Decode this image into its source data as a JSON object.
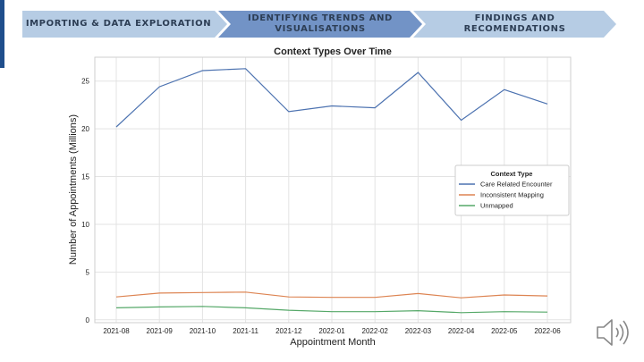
{
  "steps": [
    {
      "label": "IMPORTING & DATA EXPLORATION",
      "state": "inactive"
    },
    {
      "label": "IDENTIFYING TRENDS AND VISUALISATIONS",
      "state": "active"
    },
    {
      "label": "FINDINGS AND RECOMENDATIONS",
      "state": "inactive"
    }
  ],
  "colors": {
    "step_inactive": "#b6cce4",
    "step_active": "#7293c6",
    "accent": "#1f4e8c",
    "care": "#4c72b0",
    "inconsistent": "#dd8452",
    "unmapped": "#55a868"
  },
  "icons": {
    "audio": "speaker-icon"
  },
  "chart_data": {
    "type": "line",
    "title": "Context Types Over Time",
    "xlabel": "Appointment Month",
    "ylabel": "Number of Appointments (Millions)",
    "categories": [
      "2021-08",
      "2021-09",
      "2021-10",
      "2021-11",
      "2021-12",
      "2022-01",
      "2022-02",
      "2022-03",
      "2022-04",
      "2022-05",
      "2022-06"
    ],
    "ylim": [
      -0.3,
      27.5
    ],
    "yticks": [
      0,
      5,
      10,
      15,
      20,
      25
    ],
    "grid": true,
    "legend": {
      "title": "Context Type",
      "placement": "center-right"
    },
    "series": [
      {
        "name": "Care Related Encounter",
        "color": "#4c72b0",
        "values": [
          20.2,
          24.4,
          26.1,
          26.3,
          21.8,
          22.4,
          22.2,
          25.9,
          20.9,
          24.1,
          22.6
        ]
      },
      {
        "name": "Inconsistent Mapping",
        "color": "#dd8452",
        "values": [
          2.4,
          2.8,
          2.85,
          2.9,
          2.4,
          2.35,
          2.35,
          2.75,
          2.3,
          2.6,
          2.5
        ]
      },
      {
        "name": "Unmapped",
        "color": "#55a868",
        "values": [
          1.25,
          1.35,
          1.4,
          1.25,
          1.0,
          0.85,
          0.85,
          0.95,
          0.75,
          0.85,
          0.8
        ]
      }
    ]
  }
}
